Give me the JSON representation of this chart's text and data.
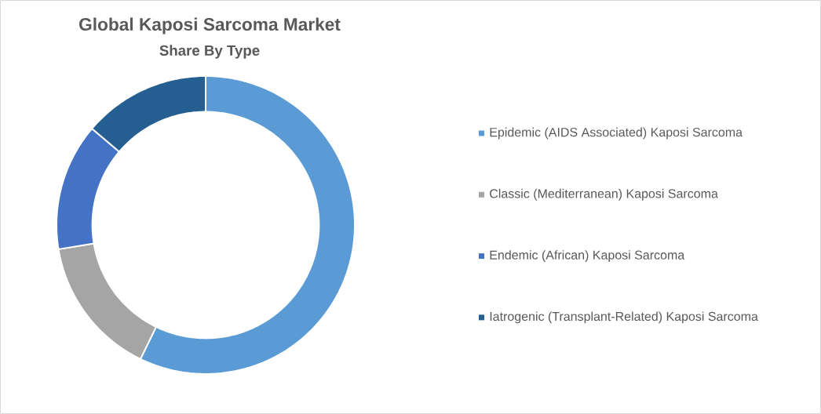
{
  "chart_data": {
    "type": "donut",
    "title": "Global Kaposi Sarcoma Market",
    "subtitle": "Share By Type",
    "categories": [
      "Epidemic (AIDS Associated) Kaposi Sarcoma",
      "Classic (Mediterranean) Kaposi Sarcoma",
      "Endemic (African) Kaposi Sarcoma",
      "Iatrogenic (Transplant-Related) Kaposi Sarcoma"
    ],
    "values": [
      57.2,
      15.2,
      13.8,
      13.8
    ],
    "colors": [
      "#5b9bd5",
      "#a5a5a5",
      "#4472c4",
      "#255e91"
    ],
    "legend": "right"
  }
}
